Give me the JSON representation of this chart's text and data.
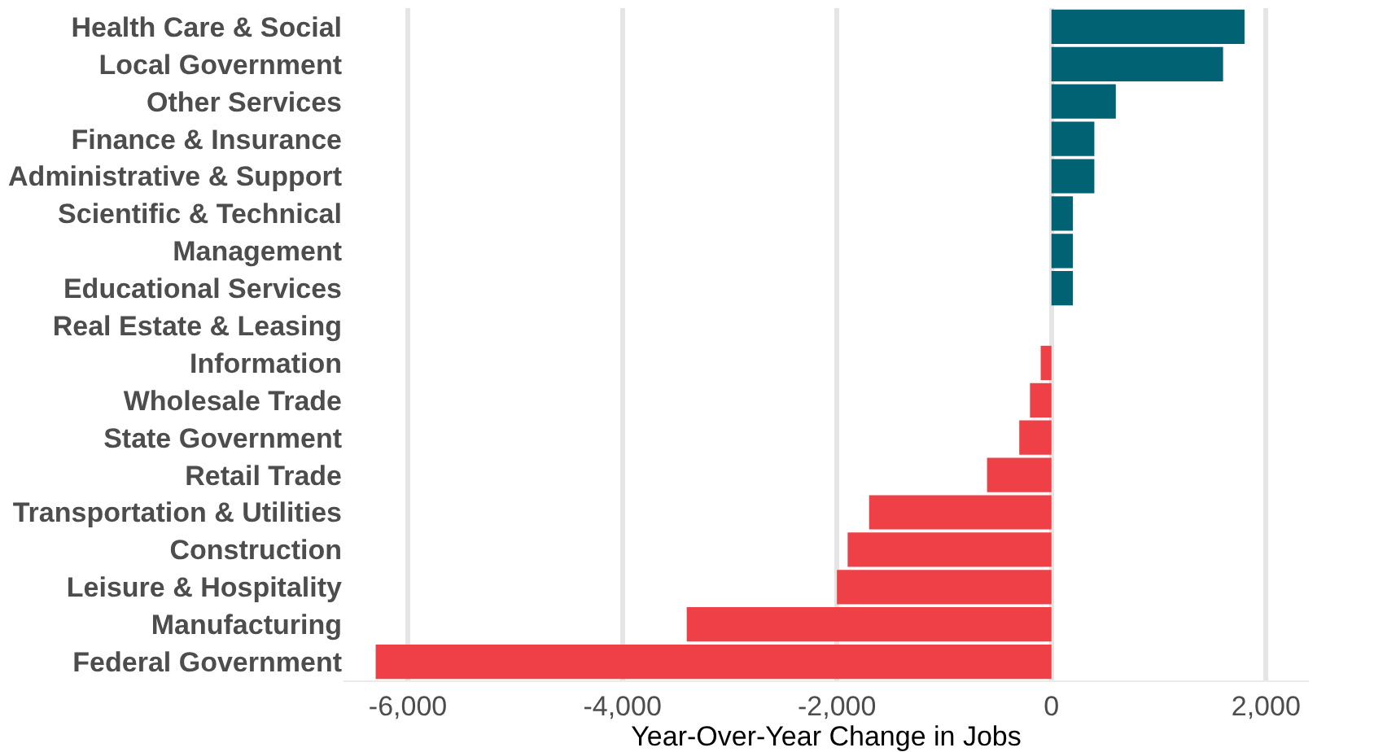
{
  "chart_data": {
    "type": "bar",
    "orientation": "horizontal",
    "categories": [
      "Health Care & Social",
      "Local Government",
      "Other Services",
      "Finance & Insurance",
      "Administrative & Support",
      "Scientific & Technical",
      "Management",
      "Educational Services",
      "Real Estate & Leasing",
      "Information",
      "Wholesale Trade",
      "State Government",
      "Retail Trade",
      "Transportation & Utilities",
      "Construction",
      "Leisure & Hospitality",
      "Manufacturing",
      "Federal Government"
    ],
    "values": [
      1800,
      1600,
      600,
      400,
      400,
      200,
      200,
      200,
      0,
      -100,
      -200,
      -300,
      -600,
      -1700,
      -1900,
      -2000,
      -3400,
      -6300
    ],
    "colors": [
      "#006272",
      "#006272",
      "#006272",
      "#006272",
      "#006272",
      "#006272",
      "#006272",
      "#006272",
      "#006272",
      "#ee4046",
      "#ee4046",
      "#ee4046",
      "#ee4046",
      "#ee4046",
      "#ee4046",
      "#ee4046",
      "#ee4046",
      "#ee4046"
    ],
    "xlabel": "Year-Over-Year Change in Jobs",
    "xlim": [
      -6600,
      2400
    ],
    "xticks": [
      {
        "value": -6000,
        "label": "-6,000"
      },
      {
        "value": -4000,
        "label": "-4,000"
      },
      {
        "value": -2000,
        "label": "-2,000"
      },
      0,
      {
        "value": 2000,
        "label": "2,000"
      }
    ],
    "grid": "x"
  }
}
